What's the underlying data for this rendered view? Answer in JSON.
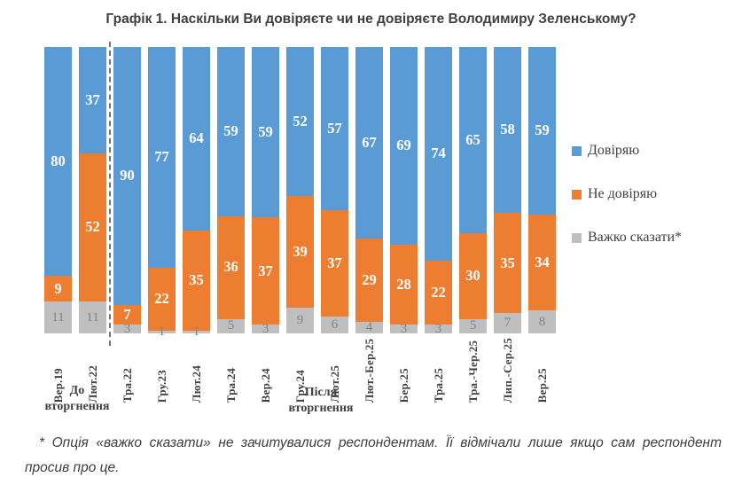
{
  "title": "Графік 1. Наскільки Ви довіряєте чи не довіряєте Володимиру Зеленському?",
  "legend": {
    "items": [
      {
        "label": "Довіряю",
        "color": "#5B9BD5"
      },
      {
        "label": "Не довіряю",
        "color": "#ED7D31"
      },
      {
        "label": "Важко сказати*",
        "color": "#BFBFBF"
      }
    ]
  },
  "group_labels": {
    "before": "До вторгнення",
    "after": "Після вторгнення"
  },
  "footnote": "* Опція «важко сказати» не зачитувалися респондентам. Її відмічали лише якщо сам респондент просив про це.",
  "colors": {
    "trust": "#5B9BD5",
    "no_trust": "#ED7D31",
    "hard_to_say": "#BFBFBF",
    "divider": "#757575",
    "text_dark": "#404040"
  },
  "chart_data": {
    "type": "bar",
    "stacked": true,
    "percent": true,
    "title": "Графік 1. Наскільки Ви довіряєте чи не довіряєте Володимиру Зеленському?",
    "categories": [
      "Вер.19",
      "Лют.22",
      "Тра.22",
      "Гру.23",
      "Лют.24",
      "Тра.24",
      "Вер.24",
      "Гру.24",
      "Лют.25",
      "Лют.-Бер.25",
      "Бер.25",
      "Тра.25",
      "Тра.-Чер.25",
      "Лип.-Сер.25",
      "Вер.25"
    ],
    "series": [
      {
        "name": "Довіряю",
        "color": "#5B9BD5",
        "position": "top",
        "values": [
          80,
          37,
          90,
          77,
          64,
          59,
          59,
          52,
          57,
          67,
          69,
          74,
          65,
          58,
          59
        ]
      },
      {
        "name": "Не довіряю",
        "color": "#ED7D31",
        "position": "middle",
        "values": [
          9,
          52,
          7,
          22,
          35,
          36,
          37,
          39,
          37,
          29,
          28,
          22,
          30,
          35,
          34
        ]
      },
      {
        "name": "Важко сказати*",
        "color": "#BFBFBF",
        "position": "bottom",
        "values": [
          11,
          11,
          3,
          1,
          1,
          5,
          3,
          9,
          6,
          4,
          3,
          3,
          5,
          7,
          8
        ]
      }
    ],
    "divider_after_category": "Лют.22",
    "annotations": [
      {
        "text": "До вторгнення",
        "categories": [
          "Вер.19",
          "Лют.22"
        ]
      },
      {
        "text": "Після вторгнення",
        "categories": [
          "Тра.22",
          "Вер.25"
        ]
      }
    ],
    "ylim": [
      0,
      100
    ],
    "grid": false,
    "legend_position": "right"
  }
}
